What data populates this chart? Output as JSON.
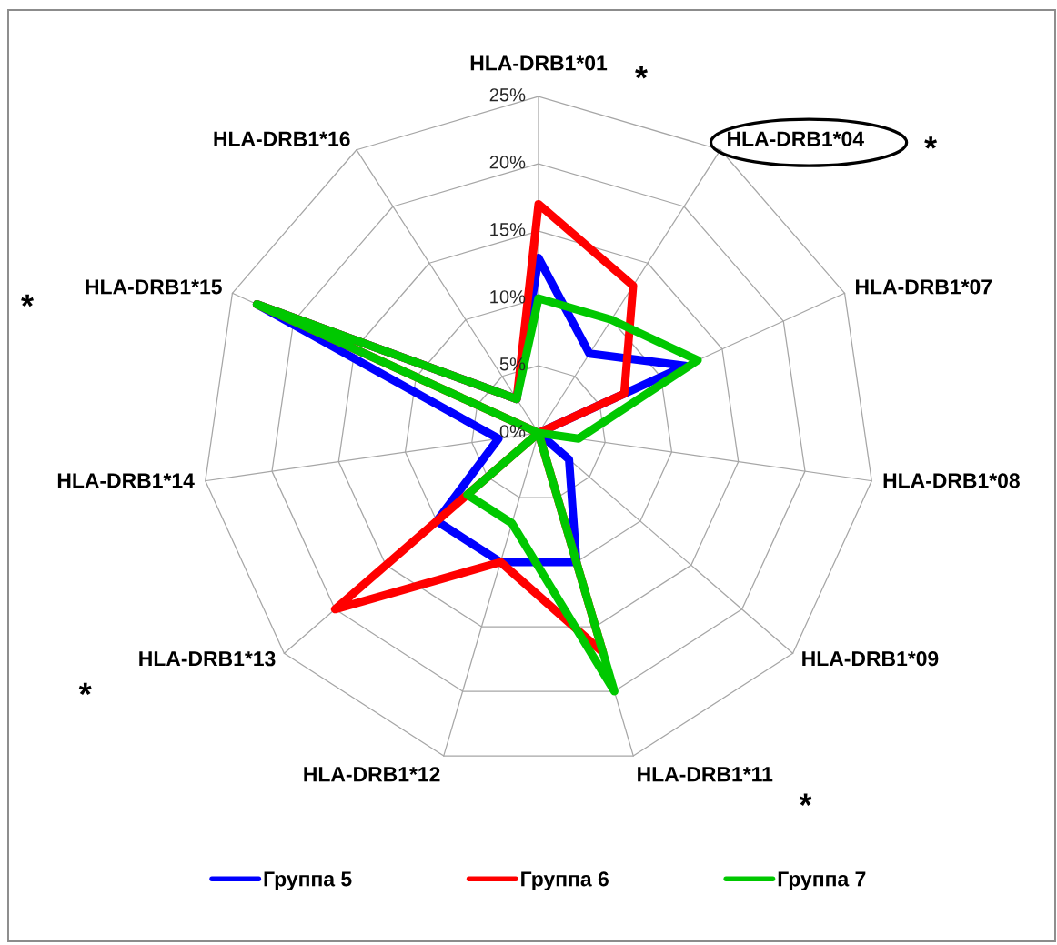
{
  "chart_data": {
    "type": "radar",
    "categories": [
      "HLA-DRB1*01",
      "HLA-DRB1*04",
      "HLA-DRB1*07",
      "HLA-DRB1*08",
      "HLA-DRB1*09",
      "HLA-DRB1*11",
      "HLA-DRB1*12",
      "HLA-DRB1*13",
      "HLA-DRB1*14",
      "HLA-DRB1*15",
      "HLA-DRB1*16"
    ],
    "series": [
      {
        "name": "Группа 5",
        "color": "#0000ff",
        "values": [
          13,
          7,
          12,
          0,
          3,
          10,
          10,
          10,
          3,
          23,
          3
        ]
      },
      {
        "name": "Группа 6",
        "color": "#ff0000",
        "values": [
          17,
          13,
          7,
          0,
          0,
          17,
          10,
          20,
          0,
          23,
          3
        ]
      },
      {
        "name": "Группа 7",
        "color": "#00c800",
        "values": [
          10,
          10,
          13,
          3,
          0,
          20,
          7,
          7,
          0,
          23,
          3
        ]
      }
    ],
    "ylim": [
      0,
      25
    ],
    "yticks": [
      {
        "value": 0,
        "label": "0%"
      },
      {
        "value": 5,
        "label": "5%"
      },
      {
        "value": 10,
        "label": "10%"
      },
      {
        "value": 15,
        "label": "15%"
      },
      {
        "value": 20,
        "label": "20%"
      },
      {
        "value": 25,
        "label": "25%"
      }
    ],
    "grid": true,
    "legend": "bottom",
    "annotations": [
      {
        "text": "*",
        "x": "HLA-DRB1*01"
      },
      {
        "text": "*",
        "x": "HLA-DRB1*04"
      },
      {
        "text": "*",
        "x": "HLA-DRB1*15"
      },
      {
        "text": "*",
        "x": "HLA-DRB1*13"
      },
      {
        "text": "*",
        "x": "HLA-DRB1*11"
      }
    ]
  }
}
